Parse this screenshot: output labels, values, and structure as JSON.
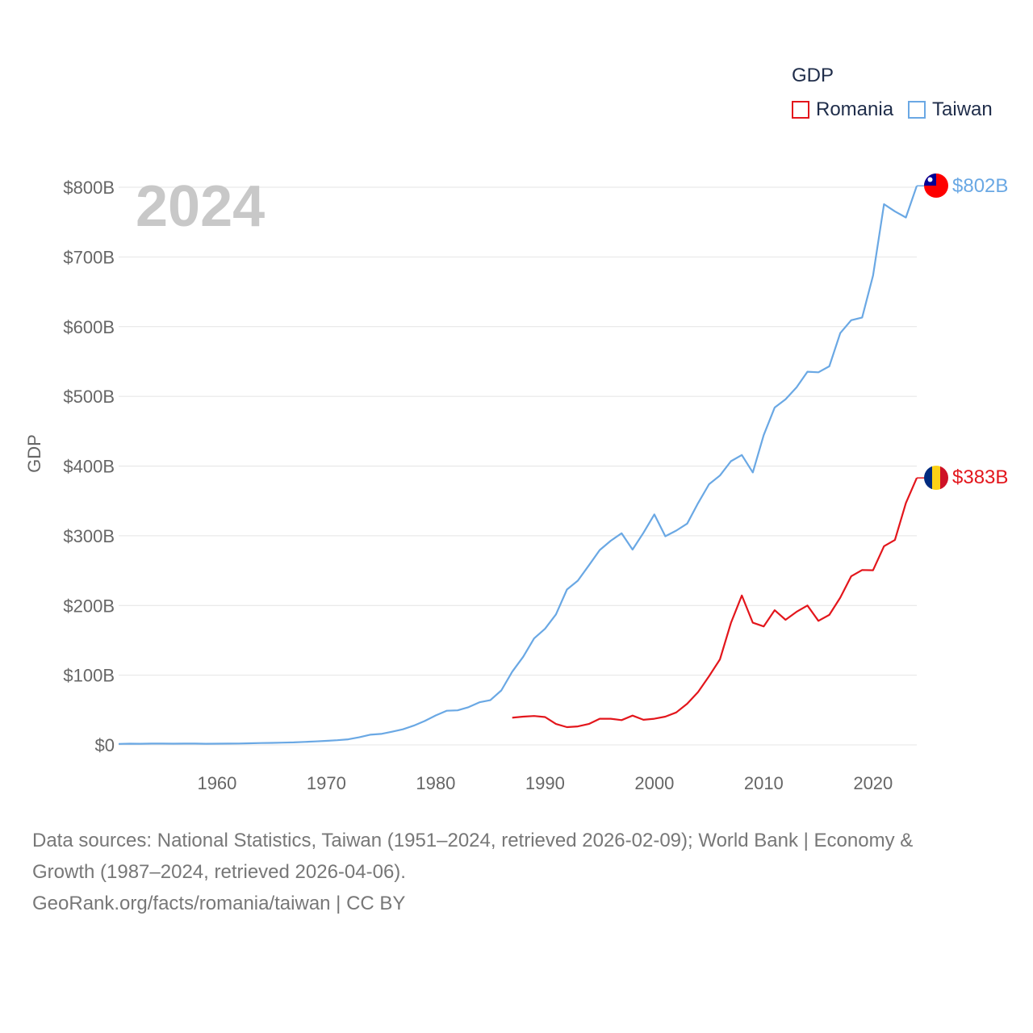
{
  "legend": {
    "title": "GDP",
    "romania_label": "Romania",
    "taiwan_label": "Taiwan"
  },
  "colors": {
    "romania": "#e3161c",
    "taiwan": "#6aa8e4",
    "axis_text": "#666666",
    "year_watermark": "#c8c8c8"
  },
  "sources": {
    "line1": "Data sources: National Statistics, Taiwan (1951–2024, retrieved 2026-02-09); World Bank | Economy &",
    "line2": "Growth (1987–2024, retrieved 2026-04-06).",
    "line3": "GeoRank.org/facts/romania/taiwan | CC BY"
  },
  "chart_data": {
    "type": "line",
    "title": "",
    "year_label": "2024",
    "xlabel": "",
    "ylabel": "GDP",
    "xlim": [
      1951,
      2024
    ],
    "ylim": [
      0,
      800
    ],
    "y_unit": "billion USD",
    "y_ticks": [
      0,
      100,
      200,
      300,
      400,
      500,
      600,
      700,
      800
    ],
    "y_tick_labels": [
      "$0",
      "$100B",
      "$200B",
      "$300B",
      "$400B",
      "$500B",
      "$600B",
      "$700B",
      "$800B"
    ],
    "x_ticks": [
      1960,
      1970,
      1980,
      1990,
      2000,
      2010,
      2020
    ],
    "x_tick_labels": [
      "1960",
      "1970",
      "1980",
      "1990",
      "2000",
      "2010",
      "2020"
    ],
    "grid": true,
    "series": [
      {
        "name": "Taiwan",
        "end_label": "$802B",
        "x": [
          1951,
          1952,
          1953,
          1954,
          1955,
          1956,
          1957,
          1958,
          1959,
          1960,
          1961,
          1962,
          1963,
          1964,
          1965,
          1966,
          1967,
          1968,
          1969,
          1970,
          1971,
          1972,
          1973,
          1974,
          1975,
          1976,
          1977,
          1978,
          1979,
          1980,
          1981,
          1982,
          1983,
          1984,
          1985,
          1986,
          1987,
          1988,
          1989,
          1990,
          1991,
          1992,
          1993,
          1994,
          1995,
          1996,
          1997,
          1998,
          1999,
          2000,
          2001,
          2002,
          2003,
          2004,
          2005,
          2006,
          2007,
          2008,
          2009,
          2010,
          2011,
          2012,
          2013,
          2014,
          2015,
          2016,
          2017,
          2018,
          2019,
          2020,
          2021,
          2022,
          2023,
          2024
        ],
        "values": [
          1.4,
          1.7,
          1.6,
          1.8,
          1.9,
          1.7,
          1.9,
          1.9,
          1.6,
          1.7,
          1.8,
          2.0,
          2.3,
          2.7,
          2.9,
          3.2,
          3.6,
          4.3,
          5.0,
          5.8,
          6.7,
          8.0,
          10.9,
          14.6,
          15.7,
          18.9,
          22.3,
          27.7,
          34.3,
          42.3,
          49.0,
          49.5,
          54.1,
          61.1,
          64.1,
          78.2,
          105.0,
          126.4,
          152.7,
          166.6,
          187.2,
          222.9,
          235.6,
          257.4,
          279.5,
          292.8,
          303.6,
          280.2,
          304.2,
          330.7,
          299.3,
          307.4,
          317.4,
          346.9,
          374.0,
          386.5,
          406.9,
          415.9,
          390.8,
          444.3,
          483.9,
          495.8,
          512.9,
          535.3,
          534.5,
          543.1,
          590.8,
          609.2,
          613.1,
          673.3,
          775.7,
          765.4,
          756.6,
          802.0
        ]
      },
      {
        "name": "Romania",
        "end_label": "$383B",
        "x": [
          1987,
          1988,
          1989,
          1990,
          1991,
          1992,
          1993,
          1994,
          1995,
          1996,
          1997,
          1998,
          1999,
          2000,
          2001,
          2002,
          2003,
          2004,
          2005,
          2006,
          2007,
          2008,
          2009,
          2010,
          2011,
          2012,
          2013,
          2014,
          2015,
          2016,
          2017,
          2018,
          2019,
          2020,
          2021,
          2022,
          2023,
          2024
        ],
        "values": [
          39.0,
          40.5,
          41.5,
          40.0,
          30.0,
          25.5,
          26.5,
          30.0,
          37.5,
          37.5,
          35.5,
          42.0,
          36.0,
          37.5,
          40.5,
          46.5,
          59.0,
          75.8,
          98.5,
          122.7,
          174.9,
          214.3,
          175.3,
          170.0,
          193.2,
          179.5,
          190.9,
          200.0,
          178.0,
          186.5,
          211.3,
          241.8,
          250.9,
          250.5,
          285.0,
          294.0,
          347.0,
          383.0
        ]
      }
    ]
  }
}
